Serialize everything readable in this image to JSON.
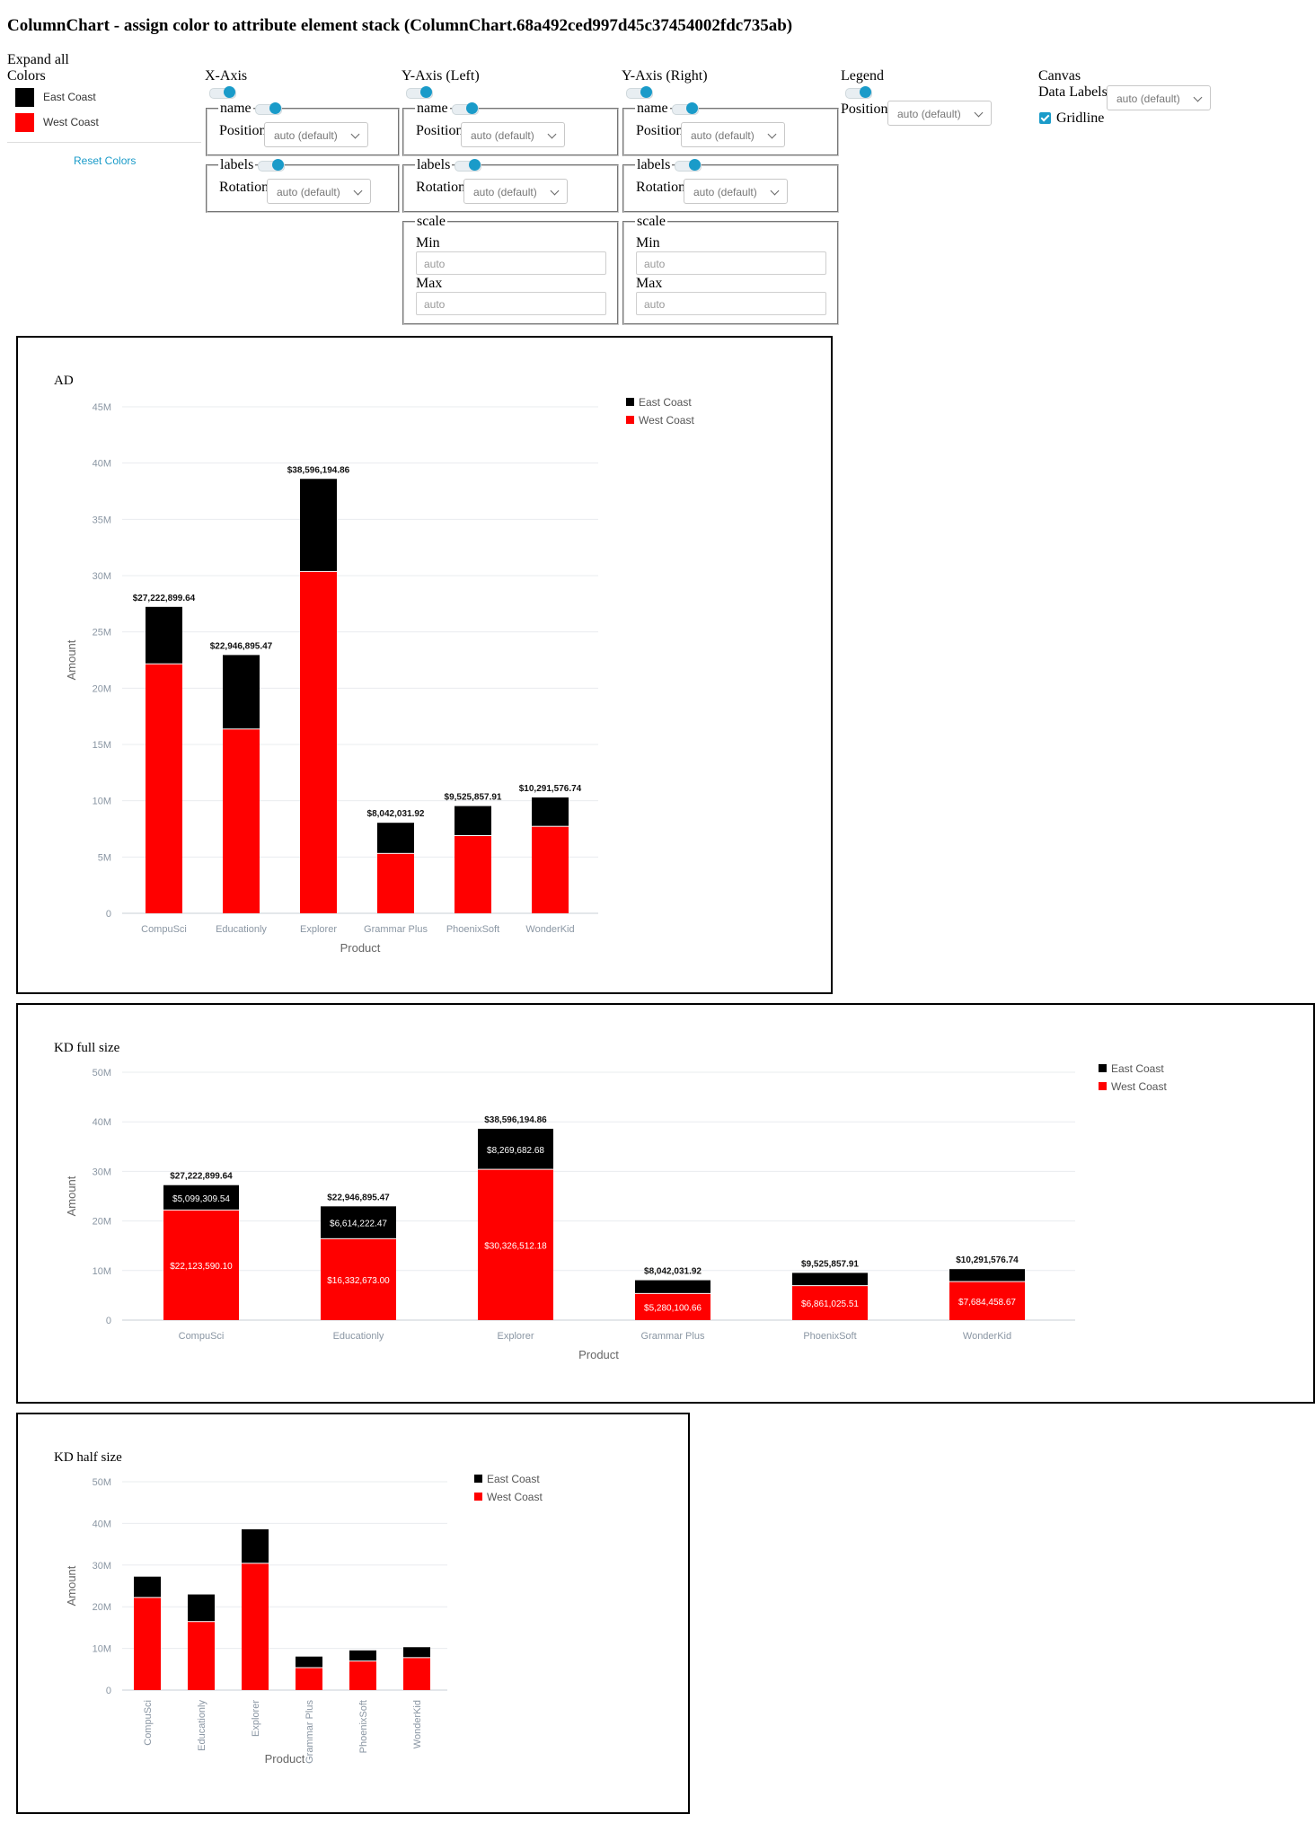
{
  "page_title": "ColumnChart - assign color to attribute element stack (ColumnChart.68a492ced997d45c37454002fdc735ab)",
  "colors_panel": {
    "expand_all": "Expand all",
    "colors_label": "Colors",
    "items": [
      {
        "label": "East Coast",
        "color": "#000000"
      },
      {
        "label": "West Coast",
        "color": "#ff0000"
      }
    ],
    "reset_label": "Reset Colors"
  },
  "xaxis": {
    "title": "X-Axis",
    "name_legend": "name",
    "position_label": "Position",
    "position_value": "auto (default)",
    "labels_legend": "labels",
    "rotation_label": "Rotation",
    "rotation_value": "auto (default)"
  },
  "yaxis_left": {
    "title": "Y-Axis (Left)",
    "name_legend": "name",
    "position_label": "Position",
    "position_value": "auto (default)",
    "labels_legend": "labels",
    "rotation_label": "Rotation",
    "rotation_value": "auto (default)",
    "scale_legend": "scale",
    "min_label": "Min",
    "min_placeholder": "auto",
    "max_label": "Max",
    "max_placeholder": "auto"
  },
  "yaxis_right": {
    "title": "Y-Axis (Right)",
    "name_legend": "name",
    "position_label": "Position",
    "position_value": "auto (default)",
    "labels_legend": "labels",
    "rotation_label": "Rotation",
    "rotation_value": "auto (default)",
    "scale_legend": "scale",
    "min_label": "Min",
    "min_placeholder": "auto",
    "max_label": "Max",
    "max_placeholder": "auto"
  },
  "legend_ctrl": {
    "title": "Legend",
    "position_label": "Position",
    "position_value": "auto (default)"
  },
  "canvas_ctrl": {
    "title": "Canvas",
    "data_labels_label": "Data Labels",
    "data_labels_value": "auto (default)",
    "gridline_label": "Gridline",
    "gridline_checked": true
  },
  "chart_data": [
    {
      "type": "bar",
      "stacked": true,
      "title": "AD",
      "xlabel": "Product",
      "ylabel": "Amount",
      "categories": [
        "CompuSci",
        "Educationly",
        "Explorer",
        "Grammar Plus",
        "PhoenixSoft",
        "WonderKid"
      ],
      "series": [
        {
          "name": "West Coast",
          "color": "#ff0000",
          "values": [
            22123590.1,
            16332673.0,
            30326512.18,
            5280100.66,
            6861025.51,
            7684458.67
          ]
        },
        {
          "name": "East Coast",
          "color": "#000000",
          "values": [
            5099309.54,
            6614222.47,
            8269682.68,
            2761931.26,
            2664832.4,
            2607118.07
          ]
        }
      ],
      "total_labels": [
        "$27,222,899.64",
        "$22,946,895.47",
        "$38,596,194.86",
        "$8,042,031.92",
        "$9,525,857.91",
        "$10,291,576.74"
      ],
      "ylim": [
        0,
        45000000
      ],
      "yticks": [
        "0",
        "5M",
        "10M",
        "15M",
        "20M",
        "25M",
        "30M",
        "35M",
        "40M",
        "45M"
      ],
      "grid": true,
      "legend": "top-right",
      "legend_entries": [
        "East Coast",
        "West Coast"
      ]
    },
    {
      "type": "bar",
      "stacked": true,
      "title": "KD full size",
      "xlabel": "Product",
      "ylabel": "Amount",
      "categories": [
        "CompuSci",
        "Educationly",
        "Explorer",
        "Grammar Plus",
        "PhoenixSoft",
        "WonderKid"
      ],
      "series": [
        {
          "name": "West Coast",
          "color": "#ff0000",
          "values": [
            22123590.1,
            16332673.0,
            30326512.18,
            5280100.66,
            6861025.51,
            7684458.67
          ],
          "labels": [
            "$22,123,590.10",
            "$16,332,673.00",
            "$30,326,512.18",
            "$5,280,100.66",
            "$6,861,025.51",
            "$7,684,458.67"
          ]
        },
        {
          "name": "East Coast",
          "color": "#000000",
          "values": [
            5099309.54,
            6614222.47,
            8269682.68,
            2761931.26,
            2664832.4,
            2607118.07
          ],
          "labels": [
            "$5,099,309.54",
            "$6,614,222.47",
            "$8,269,682.68",
            "",
            "",
            ""
          ]
        }
      ],
      "total_labels": [
        "$27,222,899.64",
        "$22,946,895.47",
        "$38,596,194.86",
        "$8,042,031.92",
        "$9,525,857.91",
        "$10,291,576.74"
      ],
      "ylim": [
        0,
        50000000
      ],
      "yticks": [
        "0",
        "10M",
        "20M",
        "30M",
        "40M",
        "50M"
      ],
      "grid": true,
      "legend": "top-right",
      "legend_entries": [
        "East Coast",
        "West Coast"
      ]
    },
    {
      "type": "bar",
      "stacked": true,
      "title": "KD half size",
      "xlabel": "Product",
      "ylabel": "Amount",
      "categories": [
        "CompuSci",
        "Educationly",
        "Explorer",
        "Grammar Plus",
        "PhoenixSoft",
        "WonderKid"
      ],
      "series": [
        {
          "name": "West Coast",
          "color": "#ff0000",
          "values": [
            22123590.1,
            16332673.0,
            30326512.18,
            5280100.66,
            6861025.51,
            7684458.67
          ]
        },
        {
          "name": "East Coast",
          "color": "#000000",
          "values": [
            5099309.54,
            6614222.47,
            8269682.68,
            2761931.26,
            2664832.4,
            2607118.07
          ]
        }
      ],
      "total_labels": [],
      "ylim": [
        0,
        50000000
      ],
      "yticks": [
        "0",
        "10M",
        "20M",
        "30M",
        "40M",
        "50M"
      ],
      "xtick_rotation": -90,
      "grid": true,
      "legend": "top-right",
      "legend_entries": [
        "East Coast",
        "West Coast"
      ]
    }
  ]
}
